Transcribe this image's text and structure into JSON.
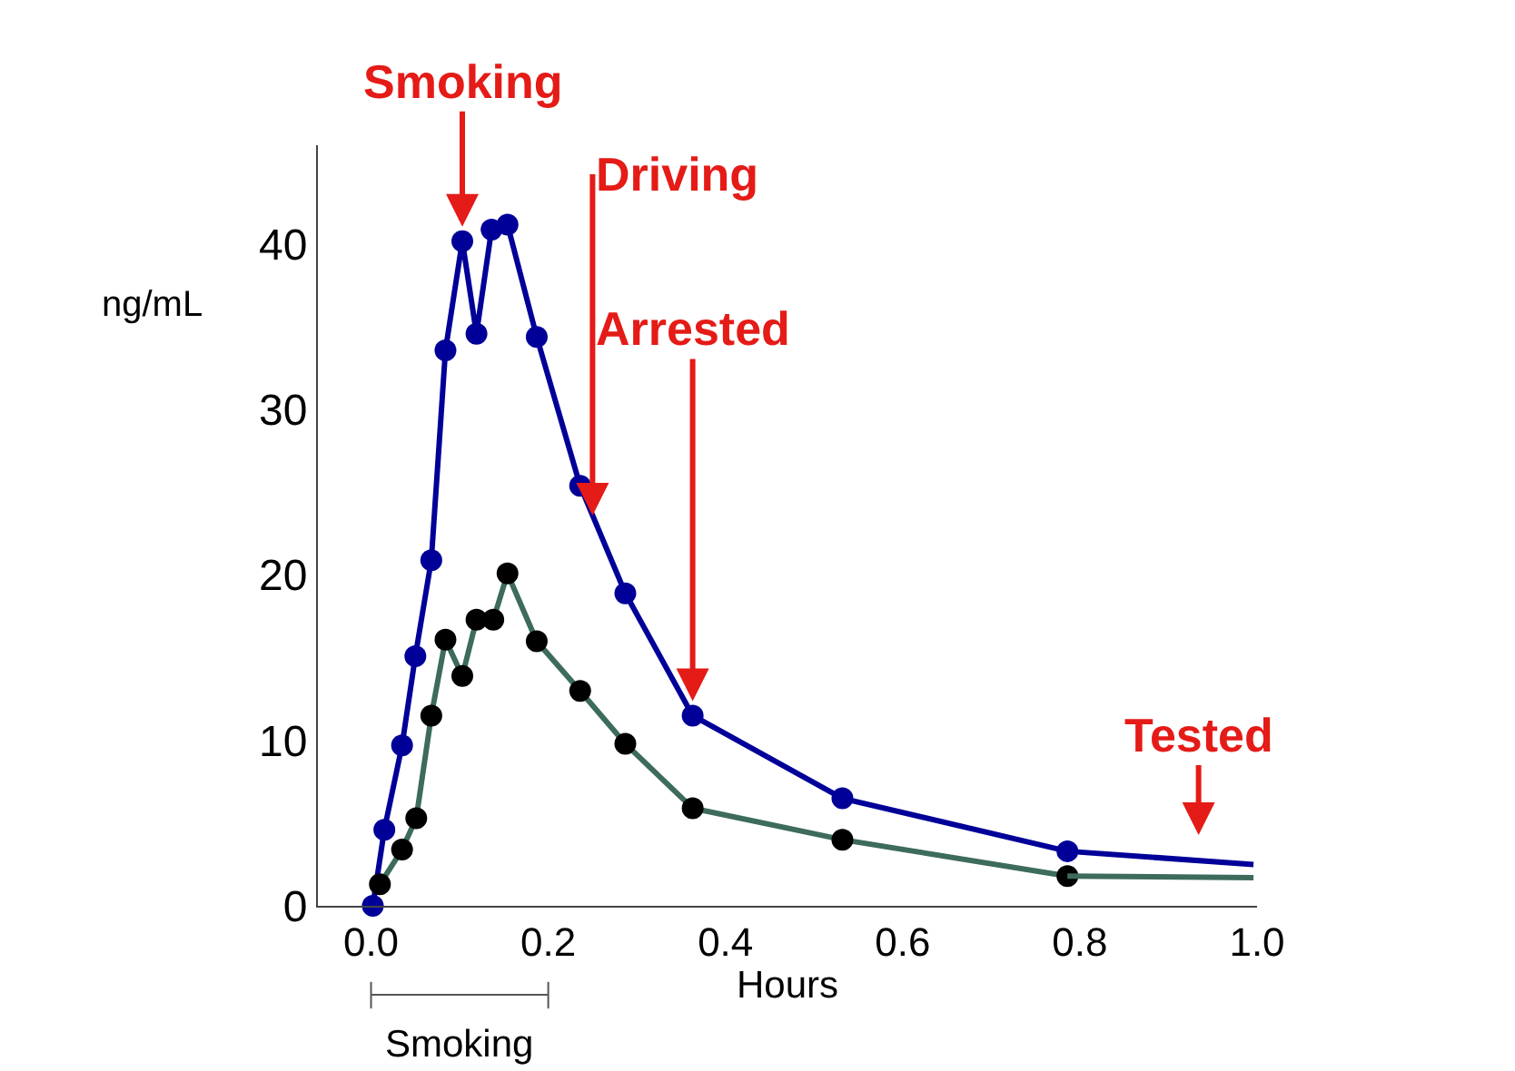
{
  "chart_data": {
    "type": "line",
    "xlabel": "Hours",
    "ylabel": "ng/mL",
    "xlim": [
      -0.06,
      1.0
    ],
    "xticks": [
      {
        "value": 0,
        "label": "0.0"
      },
      0.2,
      0.4,
      0.6,
      0.8,
      {
        "value": 1.0,
        "label": "1.0"
      }
    ],
    "ylim": [
      0,
      46
    ],
    "yticks": [
      0,
      10,
      20,
      30,
      40
    ],
    "marker": "circle",
    "line_style": "solid",
    "series": [
      {
        "color": "#000099",
        "x": [
          0.002,
          0.015,
          0.035,
          0.05,
          0.068,
          0.084,
          0.103,
          0.119,
          0.136,
          0.154,
          0.187,
          0.236,
          0.287,
          0.363,
          0.532,
          0.786
        ],
        "values": [
          0,
          4.6,
          9.7,
          15.1,
          20.9,
          33.6,
          40.2,
          34.6,
          40.9,
          41.2,
          34.4,
          25.4,
          18.9,
          11.5,
          6.5,
          3.3
        ]
      },
      {
        "color": "#000099",
        "marker": "none",
        "x": [
          0.786,
          0.996
        ],
        "values": [
          3.3,
          2.5
        ]
      },
      {
        "color": "#000000",
        "x": [
          0.01,
          0.035,
          0.051,
          0.068,
          0.084,
          0.103,
          0.119,
          0.138,
          0.154,
          0.187,
          0.236,
          0.287,
          0.363,
          0.532,
          0.786
        ],
        "values": [
          1.3,
          3.4,
          5.3,
          11.5,
          16.1,
          13.9,
          17.3,
          17.3,
          20.1,
          16.0,
          13.0,
          9.8,
          5.9,
          4.0,
          1.8
        ]
      },
      {
        "color": "#3d6b5c",
        "marker": "none",
        "x": [
          0.786,
          0.996
        ],
        "values": [
          1.8,
          1.7
        ]
      }
    ],
    "annotations": [
      {
        "text": "Smoking",
        "x": 0.103,
        "y": 40.2
      },
      {
        "text": "Driving",
        "x": 0.25,
        "y": 23.6
      },
      {
        "text": "Arrested",
        "x": 0.363,
        "y": 11.5
      },
      {
        "text": "Tested",
        "x": 0.934,
        "y": 3.4
      },
      "Smoking"
    ]
  }
}
